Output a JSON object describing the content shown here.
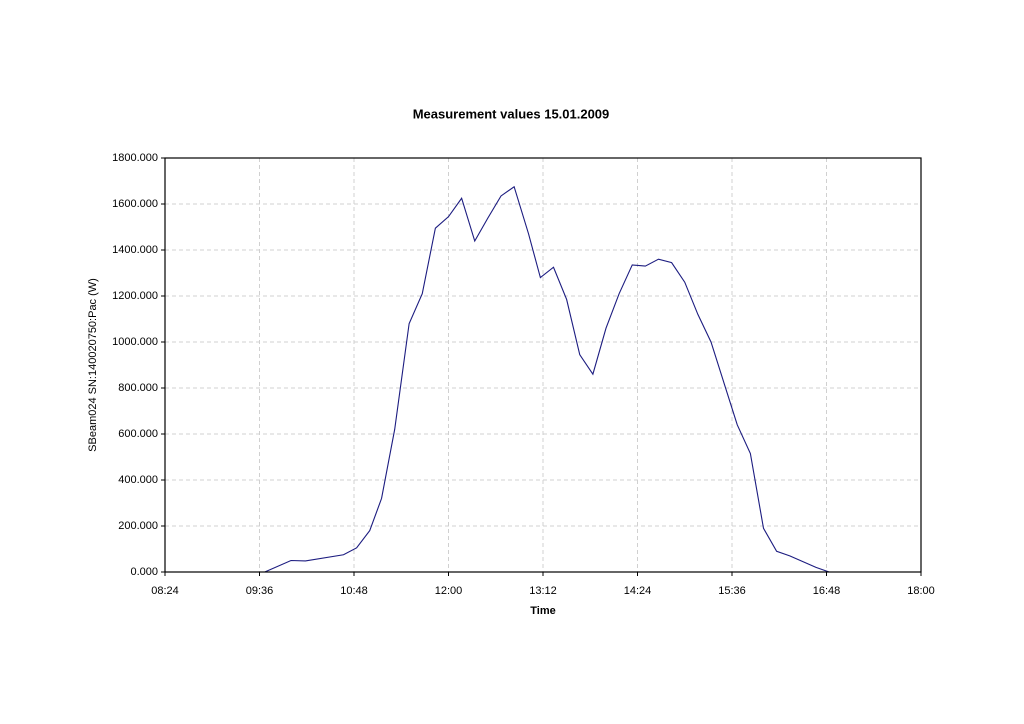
{
  "chart_data": {
    "type": "line",
    "title": "Measurement values 15.01.2009",
    "x_label": "Time",
    "y_label": "SBeam024 SN:140020750:Pac (W)",
    "x": [
      "09:40",
      "10:00",
      "10:11",
      "10:40",
      "10:50",
      "11:00",
      "11:09",
      "11:19",
      "11:30",
      "11:40",
      "11:50",
      "12:00",
      "12:10",
      "12:20",
      "12:30",
      "12:40",
      "12:50",
      "13:01",
      "13:10",
      "13:20",
      "13:30",
      "13:40",
      "13:50",
      "14:00",
      "14:10",
      "14:20",
      "14:30",
      "14:40",
      "14:50",
      "15:00",
      "15:10",
      "15:20",
      "15:30",
      "15:40",
      "15:50",
      "16:00",
      "16:10",
      "16:20",
      "16:30",
      "16:40",
      "16:50"
    ],
    "values": [
      0,
      50,
      48,
      75,
      105,
      180,
      320,
      620,
      1080,
      1210,
      1495,
      1545,
      1625,
      1439,
      1539,
      1635,
      1675,
      1470,
      1280,
      1325,
      1185,
      945,
      860,
      1060,
      1210,
      1335,
      1330,
      1360,
      1345,
      1260,
      1120,
      1000,
      820,
      640,
      515,
      190,
      90,
      70,
      45,
      20,
      0
    ],
    "color": "#1c1c80",
    "xlim": [
      "08:24",
      "18:00"
    ],
    "xticks": [
      "08:24",
      "09:36",
      "10:48",
      "12:00",
      "13:12",
      "14:24",
      "15:36",
      "16:48",
      "18:00"
    ],
    "ylim": [
      0,
      1800
    ],
    "yticks": [
      {
        "value": 0,
        "label": "0.000"
      },
      {
        "value": 200,
        "label": "200.000"
      },
      {
        "value": 400,
        "label": "400.000"
      },
      {
        "value": 600,
        "label": "600.000"
      },
      {
        "value": 800,
        "label": "800.000"
      },
      {
        "value": 1000,
        "label": "1000.000"
      },
      {
        "value": 1200,
        "label": "1200.000"
      },
      {
        "value": 1400,
        "label": "1400.000"
      },
      {
        "value": 1600,
        "label": "1600.000"
      },
      {
        "value": 1800,
        "label": "1800.000"
      }
    ],
    "grid": true
  }
}
